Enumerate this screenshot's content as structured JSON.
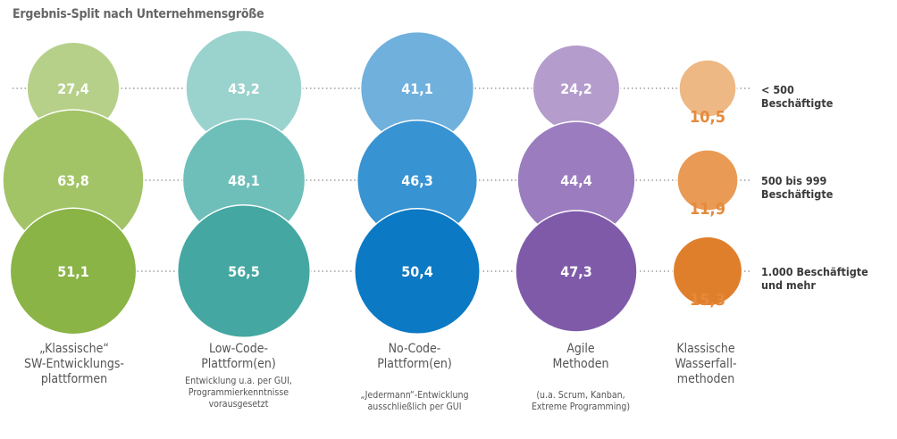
{
  "title": "Ergebnis-Split nach Unternehmensgröße",
  "chart_data": {
    "type": "bubble",
    "title": "Ergebnis-Split nach Unternehmensgröße",
    "rows": [
      {
        "label_line1": "< 500",
        "label_line2": "Beschäftigte"
      },
      {
        "label_line1": "500 bis 999",
        "label_line2": "Beschäftigte"
      },
      {
        "label_line1": "1.000 Beschäftigte",
        "label_line2": "und mehr"
      }
    ],
    "categories": [
      {
        "label_line1": "„Klassische“",
        "label_line2": "SW-Entwicklungs-",
        "label_line3": "plattformen",
        "sub_line1": "",
        "sub_line2": "",
        "sub_line3": "",
        "values": [
          27.4,
          63.8,
          51.1
        ],
        "value_labels": [
          "27,4",
          "63,8",
          "51,1"
        ],
        "colors": [
          "#b6d08a",
          "#a2c466",
          "#8ab445"
        ]
      },
      {
        "label_line1": "Low-Code-",
        "label_line2": "Plattform(en)",
        "label_line3": "",
        "sub_line1": "Entwicklung u.a. per GUI,",
        "sub_line2": "Programmierkenntnisse",
        "sub_line3": "vorausgesetzt",
        "values": [
          43.2,
          48.1,
          56.5
        ],
        "value_labels": [
          "43,2",
          "48,1",
          "56,5"
        ],
        "colors": [
          "#9ad2cd",
          "#6ebfb9",
          "#44a7a2"
        ]
      },
      {
        "label_line1": "No-Code-",
        "label_line2": "Plattform(en)",
        "label_line3": "",
        "sub_line1": "„Jedermann“-Entwicklung",
        "sub_line2": "ausschließlich per GUI",
        "sub_line3": "",
        "values": [
          41.1,
          46.3,
          50.4
        ],
        "value_labels": [
          "41,1",
          "46,3",
          "50,4"
        ],
        "colors": [
          "#6fb0dd",
          "#3793d2",
          "#0b79c4"
        ]
      },
      {
        "label_line1": "Agile",
        "label_line2": "Methoden",
        "label_line3": "",
        "sub_line1": "(u.a. Scrum, Kanban,",
        "sub_line2": "Extreme Programming)",
        "sub_line3": "",
        "values": [
          24.2,
          44.4,
          47.3
        ],
        "value_labels": [
          "24,2",
          "44,4",
          "47,3"
        ],
        "colors": [
          "#b49ccc",
          "#9a7cbf",
          "#7f5aa9"
        ]
      },
      {
        "label_line1": "Klassische",
        "label_line2": "Wasserfall-",
        "label_line3": "methoden",
        "sub_line1": "",
        "sub_line2": "",
        "sub_line3": "",
        "values": [
          10.5,
          11.9,
          15.3
        ],
        "value_labels": [
          "10,5",
          "11,9",
          "15,3"
        ],
        "colors": [
          "#eeb884",
          "#e99a54",
          "#e07f2b"
        ]
      }
    ],
    "label_color_inside": "#ffffff",
    "label_color_outside": "#e58a3c",
    "line_color": "#888888"
  }
}
